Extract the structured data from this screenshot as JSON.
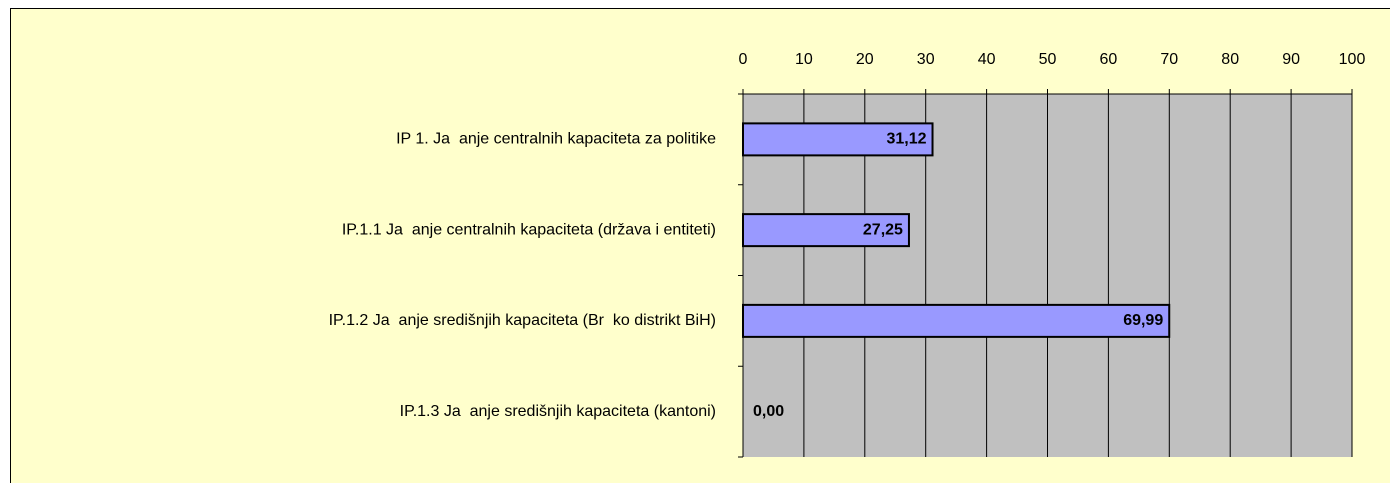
{
  "chart_data": {
    "type": "bar",
    "orientation": "horizontal",
    "categories": [
      "IP 1. Ja  anje centralnih kapaciteta za politike",
      "IP.1.1 Ja  anje centralnih kapaciteta (država i entiteti)",
      "IP.1.2 Ja  anje središnjih kapaciteta (Br  ko distrikt BiH)",
      "IP.1.3 Ja  anje središnjih kapaciteta (kantoni)"
    ],
    "values": [
      31.12,
      27.25,
      69.99,
      0
    ],
    "value_labels": [
      "31,12",
      "27,25",
      "69,99",
      "0,00"
    ],
    "color": "#9999ff",
    "xlim": [
      0,
      100
    ],
    "xticks": [
      0,
      10,
      20,
      30,
      40,
      50,
      60,
      70,
      80,
      90,
      100
    ],
    "grid": true
  }
}
